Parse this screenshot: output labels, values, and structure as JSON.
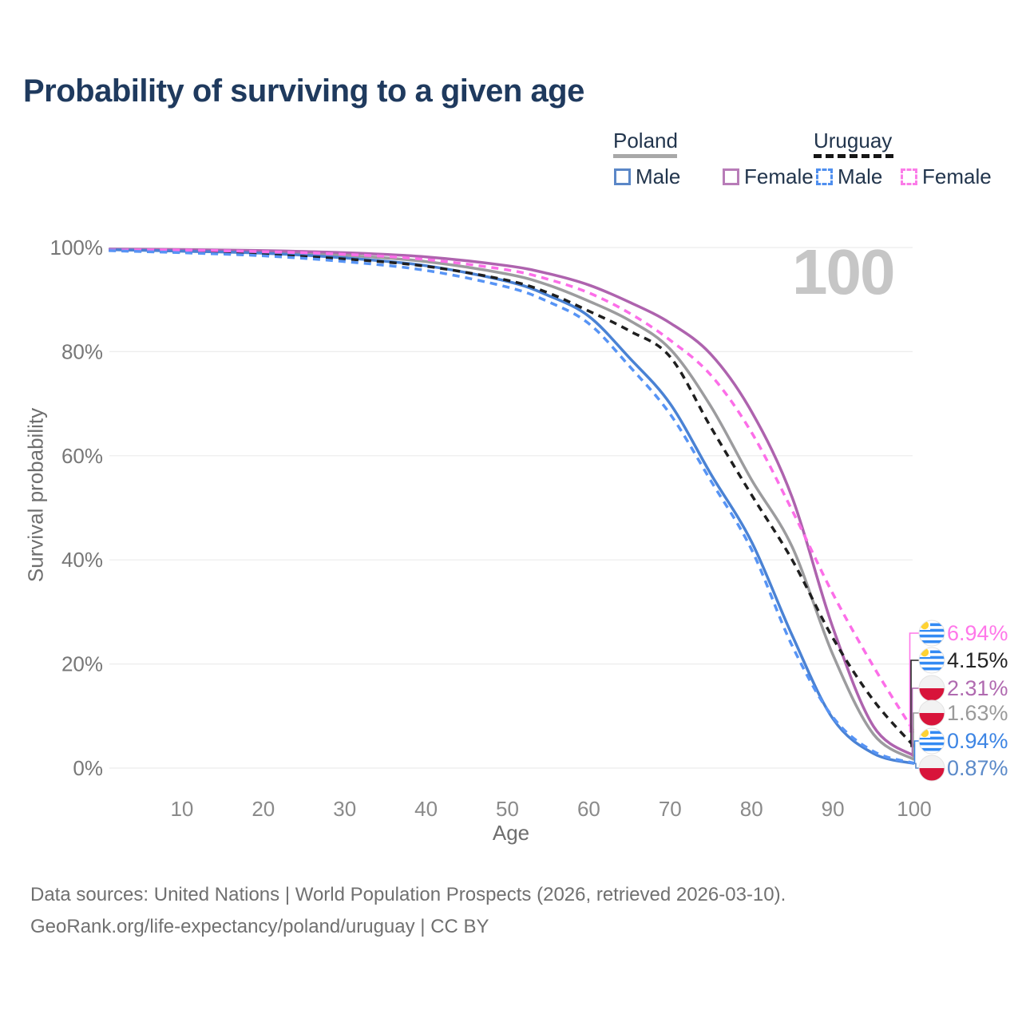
{
  "title": "Probability of surviving to a given age",
  "watermark": "100",
  "legend": {
    "poland": {
      "label": "Poland",
      "male": "Male",
      "female": "Female",
      "male_color": "#5b87c7",
      "female_color": "#b87cb8",
      "line_style": "solid",
      "header_line_color": "#a8a8a8"
    },
    "uruguay": {
      "label": "Uruguay",
      "male": "Male",
      "female": "Female",
      "male_color": "#4f8fef",
      "female_color": "#fb7ce8",
      "line_style": "dashed",
      "header_line_color": "#161616"
    }
  },
  "chart_data": {
    "type": "line",
    "x": [
      1,
      10,
      20,
      30,
      40,
      50,
      55,
      60,
      65,
      70,
      75,
      80,
      85,
      90,
      95,
      100
    ],
    "series": [
      {
        "name": "Poland Male",
        "country": "Poland",
        "sex": "Male",
        "style": "solid",
        "color": "#4a82d4",
        "values": [
          99.6,
          99.3,
          98.9,
          98.0,
          96.5,
          93.5,
          90.8,
          86.8,
          78.8,
          70.0,
          56.5,
          43.5,
          25.5,
          9.5,
          2.8,
          0.87
        ]
      },
      {
        "name": "Poland Female",
        "country": "Poland",
        "sex": "Female",
        "style": "solid",
        "color": "#ae63ae",
        "values": [
          99.7,
          99.6,
          99.4,
          99.0,
          98.2,
          96.5,
          95.0,
          92.8,
          89.5,
          85.5,
          79.5,
          68.5,
          52.0,
          27.0,
          8.0,
          2.31
        ]
      },
      {
        "name": "Poland Both sexes",
        "country": "Poland",
        "sex": "Both",
        "style": "solid",
        "color": "#9c9c9e",
        "values": [
          99.6,
          99.4,
          99.1,
          98.5,
          97.3,
          94.9,
          92.8,
          89.7,
          86.0,
          80.5,
          69.5,
          55.4,
          42.5,
          21.8,
          6.5,
          1.63
        ]
      },
      {
        "name": "Uruguay Male",
        "country": "Uruguay",
        "sex": "Male",
        "style": "dashed",
        "color": "#5794f5",
        "values": [
          99.4,
          99.0,
          98.4,
          97.3,
          95.6,
          92.4,
          89.6,
          85.4,
          77.2,
          68.0,
          55.2,
          42.0,
          23.5,
          9.8,
          3.2,
          0.94
        ]
      },
      {
        "name": "Uruguay Female",
        "country": "Uruguay",
        "sex": "Female",
        "style": "dashed",
        "color": "#fc6ee8",
        "values": [
          99.5,
          99.5,
          99.2,
          98.7,
          97.7,
          95.7,
          93.9,
          91.3,
          87.4,
          82.2,
          75.5,
          64.5,
          49.5,
          33.5,
          19.5,
          6.94
        ]
      },
      {
        "name": "Uruguay Both sexes",
        "country": "Uruguay",
        "sex": "Both",
        "style": "dashed",
        "color": "#1f1f1f",
        "values": [
          99.5,
          99.1,
          98.6,
          97.8,
          96.4,
          93.7,
          91.3,
          87.8,
          84.0,
          79.0,
          65.5,
          52.5,
          40.0,
          25.0,
          13.0,
          4.15
        ]
      }
    ],
    "xlim": [
      0,
      100
    ],
    "ylim": [
      0,
      100
    ],
    "x_ticks": [
      10,
      20,
      30,
      40,
      50,
      60,
      70,
      80,
      90,
      100
    ],
    "y_ticks": [
      {
        "value": 100,
        "label": "100%"
      },
      {
        "value": 80,
        "label": "80%"
      },
      {
        "value": 60,
        "label": "60%"
      },
      {
        "value": 40,
        "label": "40%"
      },
      {
        "value": 20,
        "label": "20%"
      },
      {
        "value": 0,
        "label": "0%"
      }
    ],
    "xlabel": "Age",
    "ylabel": "Survival probability",
    "grid": "horizontal",
    "gridline_color": "#ececec",
    "legend_position": "top-right"
  },
  "end_labels": [
    {
      "text": "6.94%",
      "value": 6.94,
      "flag": "uruguay",
      "series": "Uruguay Female",
      "color": "#ff77e9"
    },
    {
      "text": "4.15%",
      "value": 4.15,
      "flag": "uruguay",
      "series": "Uruguay Both sexes",
      "color": "#222222"
    },
    {
      "text": "2.31%",
      "value": 2.31,
      "flag": "poland",
      "series": "Poland Female",
      "color": "#b06ab0"
    },
    {
      "text": "1.63%",
      "value": 1.63,
      "flag": "poland",
      "series": "Poland Both sexes",
      "color": "#9a9a9a"
    },
    {
      "text": "0.94%",
      "value": 0.94,
      "flag": "uruguay",
      "series": "Uruguay Male",
      "color": "#3d85e4"
    },
    {
      "text": "0.87%",
      "value": 0.87,
      "flag": "poland",
      "series": "Poland Male",
      "color": "#5b8ac9"
    }
  ],
  "footer": {
    "line1": "Data sources: United Nations | World Population Prospects (2026, retrieved 2026-03-10).",
    "line2": "GeoRank.org/life-expectancy/poland/uruguay | CC BY"
  }
}
